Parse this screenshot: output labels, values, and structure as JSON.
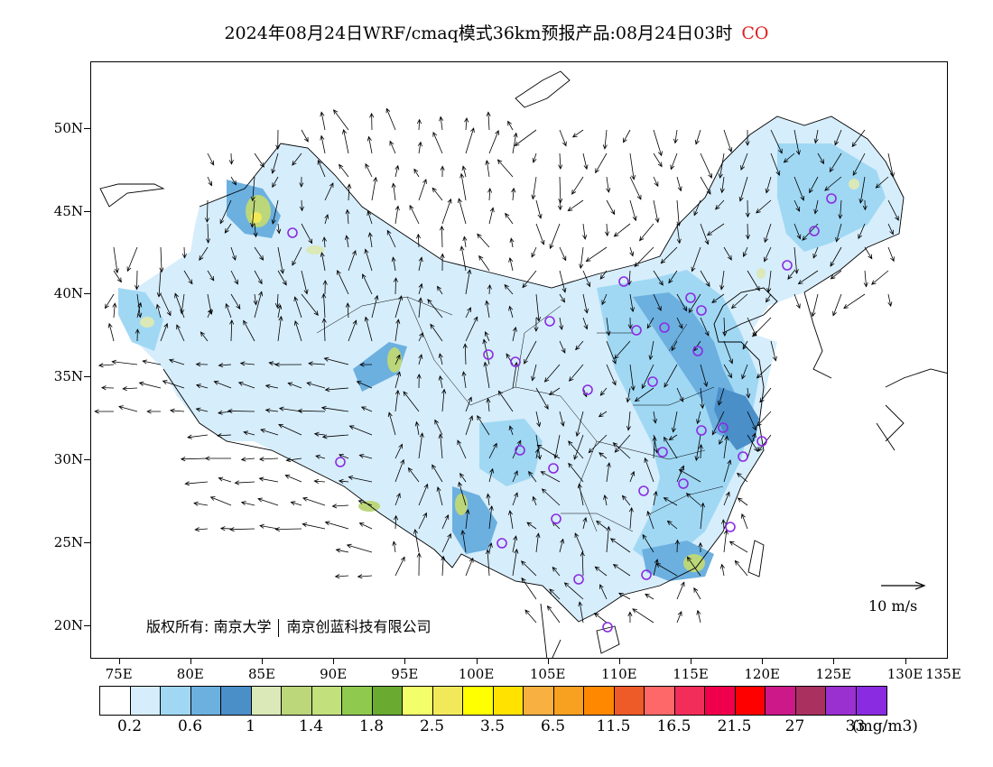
{
  "title": {
    "main": "2024年08月24日WRF/cmaq模式36km预报产品:08月24日03时",
    "species": "CO"
  },
  "map": {
    "lat_labels": [
      "50N",
      "45N",
      "40N",
      "35N",
      "30N",
      "25N",
      "20N"
    ],
    "lat_values": [
      50,
      45,
      40,
      35,
      30,
      25,
      20
    ],
    "lon_labels": [
      "75E",
      "80E",
      "85E",
      "90E",
      "95E",
      "100E",
      "105E",
      "110E",
      "115E",
      "120E",
      "125E",
      "130E",
      "135E"
    ],
    "lon_values": [
      75,
      80,
      85,
      90,
      95,
      100,
      105,
      110,
      115,
      120,
      125,
      130,
      135
    ],
    "lon_range": [
      73,
      133
    ],
    "lat_range": [
      18,
      54
    ],
    "copyright_prefix": "版权所有: 南京大学",
    "copyright_suffix": "南京创蓝科技有限公司",
    "wind_reference_label": "10 m/s",
    "station_color": "#8a2be2"
  },
  "colorbar": {
    "colors": [
      "#ffffff",
      "#d6edfb",
      "#a0d8f4",
      "#6cb0e0",
      "#4a8fc8",
      "#dbe8b8",
      "#bcd67a",
      "#c2e07c",
      "#8fca4e",
      "#6aaa30",
      "#f2ff6a",
      "#f2e95a",
      "#ffff00",
      "#ffe200",
      "#f8b040",
      "#f8a020",
      "#ff8800",
      "#ee5a28",
      "#ff6868",
      "#f22d5a",
      "#f0004c",
      "#ff0000",
      "#cc1888",
      "#aa3060",
      "#9a30d0",
      "#8a2be2"
    ],
    "tick_labels": [
      "0.2",
      "0.6",
      "1",
      "1.4",
      "1.8",
      "2.5",
      "3.5",
      "6.5",
      "11.5",
      "16.5",
      "21.5",
      "27",
      "33"
    ],
    "unit": "(mg/m3)"
  }
}
